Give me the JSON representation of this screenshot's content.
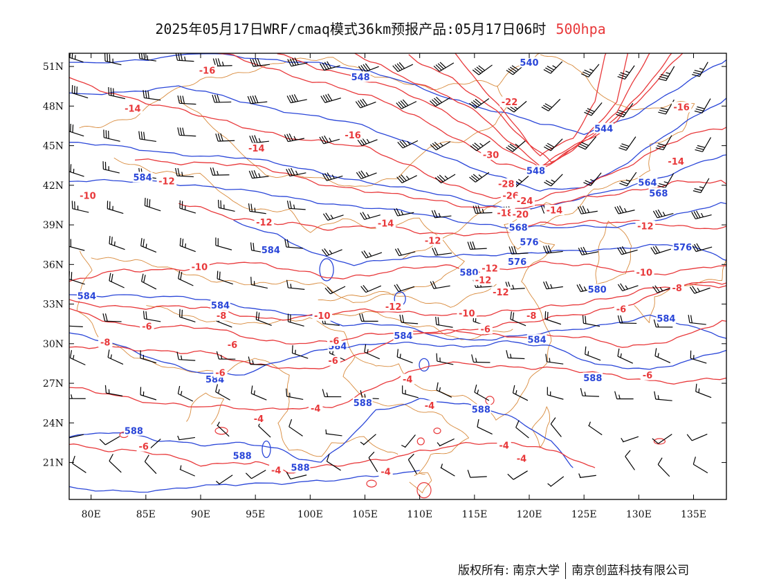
{
  "title": {
    "main": "2025年05月17日WRF/cmaq模式36km预报产品:05月17日06时",
    "level": "500hpa"
  },
  "axes": {
    "lat_ticks": [
      "51N",
      "48N",
      "45N",
      "42N",
      "39N",
      "36N",
      "33N",
      "30N",
      "27N",
      "24N",
      "21N"
    ],
    "lon_ticks": [
      "80E",
      "85E",
      "90E",
      "95E",
      "100E",
      "105E",
      "110E",
      "115E",
      "120E",
      "125E",
      "130E",
      "135E"
    ],
    "lat_range": [
      18.2,
      52
    ],
    "lon_range": [
      78,
      138
    ]
  },
  "colors": {
    "height_contours": "#2a46d8",
    "temperature_contours": "#e8383a",
    "boundaries": "#d8893a",
    "wind_barbs": "#000000"
  },
  "height_labels": [
    {
      "text": "540",
      "lon": 120,
      "lat": 51.3
    },
    {
      "text": "548",
      "lon": 104.6,
      "lat": 50.2
    },
    {
      "text": "544",
      "lon": 126.8,
      "lat": 46.3
    },
    {
      "text": "548",
      "lon": 120.6,
      "lat": 43.1
    },
    {
      "text": "564",
      "lon": 130.8,
      "lat": 42.2
    },
    {
      "text": "568",
      "lon": 131.8,
      "lat": 41.4
    },
    {
      "text": "584",
      "lon": 84.7,
      "lat": 42.6
    },
    {
      "text": "568",
      "lon": 119,
      "lat": 38.8
    },
    {
      "text": "576",
      "lon": 120,
      "lat": 37.7
    },
    {
      "text": "576",
      "lon": 134,
      "lat": 37.3
    },
    {
      "text": "576",
      "lon": 118.9,
      "lat": 36.2
    },
    {
      "text": "584",
      "lon": 96.4,
      "lat": 37.1
    },
    {
      "text": "580",
      "lon": 114.5,
      "lat": 35.4
    },
    {
      "text": "580",
      "lon": 126.2,
      "lat": 34.1
    },
    {
      "text": "584",
      "lon": 79.6,
      "lat": 33.6
    },
    {
      "text": "584",
      "lon": 91.8,
      "lat": 32.9
    },
    {
      "text": "584",
      "lon": 132.5,
      "lat": 31.9
    },
    {
      "text": "584",
      "lon": 108.5,
      "lat": 30.6
    },
    {
      "text": "584",
      "lon": 102.5,
      "lat": 29.8
    },
    {
      "text": "584",
      "lon": 120.7,
      "lat": 30.3
    },
    {
      "text": "588",
      "lon": 125.8,
      "lat": 27.4
    },
    {
      "text": "584",
      "lon": 91.3,
      "lat": 27.3
    },
    {
      "text": "588",
      "lon": 104.8,
      "lat": 25.5
    },
    {
      "text": "588",
      "lon": 115.6,
      "lat": 25.0
    },
    {
      "text": "588",
      "lon": 83.9,
      "lat": 23.4
    },
    {
      "text": "588",
      "lon": 93.8,
      "lat": 21.5
    },
    {
      "text": "588",
      "lon": 99.1,
      "lat": 20.6
    }
  ],
  "temperature_labels": [
    {
      "text": "-16",
      "lon": 90.6,
      "lat": 50.7
    },
    {
      "text": "-14",
      "lon": 83.8,
      "lat": 47.8
    },
    {
      "text": "-16",
      "lon": 103.9,
      "lat": 45.8
    },
    {
      "text": "-22",
      "lon": 118.2,
      "lat": 48.3
    },
    {
      "text": "-16",
      "lon": 133.9,
      "lat": 47.9
    },
    {
      "text": "-14",
      "lon": 95.1,
      "lat": 44.8
    },
    {
      "text": "-30",
      "lon": 116.5,
      "lat": 44.3
    },
    {
      "text": "-12",
      "lon": 86.9,
      "lat": 42.3
    },
    {
      "text": "-10",
      "lon": 79.7,
      "lat": 41.2
    },
    {
      "text": "-28",
      "lon": 117.9,
      "lat": 42.1
    },
    {
      "text": "-26",
      "lon": 118.3,
      "lat": 41.2
    },
    {
      "text": "-24",
      "lon": 119.6,
      "lat": 40.8
    },
    {
      "text": "-18",
      "lon": 117.8,
      "lat": 39.9
    },
    {
      "text": "-20",
      "lon": 119.2,
      "lat": 39.8
    },
    {
      "text": "-14",
      "lon": 122.3,
      "lat": 40.1
    },
    {
      "text": "-14",
      "lon": 133.4,
      "lat": 43.8
    },
    {
      "text": "-12",
      "lon": 130.6,
      "lat": 38.9
    },
    {
      "text": "-12",
      "lon": 95.8,
      "lat": 39.2
    },
    {
      "text": "-14",
      "lon": 106.9,
      "lat": 39.1
    },
    {
      "text": "-12",
      "lon": 111.2,
      "lat": 37.8
    },
    {
      "text": "-10",
      "lon": 89.9,
      "lat": 35.8
    },
    {
      "text": "-12",
      "lon": 116.4,
      "lat": 35.7
    },
    {
      "text": "-10",
      "lon": 130.5,
      "lat": 35.4
    },
    {
      "text": "-12",
      "lon": 115.8,
      "lat": 34.8
    },
    {
      "text": "-8",
      "lon": 133.5,
      "lat": 34.2
    },
    {
      "text": "-12",
      "lon": 117.4,
      "lat": 33.9
    },
    {
      "text": "-12",
      "lon": 107.6,
      "lat": 32.8
    },
    {
      "text": "-10",
      "lon": 114.3,
      "lat": 32.3
    },
    {
      "text": "-8",
      "lon": 120.2,
      "lat": 32.1
    },
    {
      "text": "-6",
      "lon": 128.4,
      "lat": 32.6
    },
    {
      "text": "-10",
      "lon": 101.1,
      "lat": 32.1
    },
    {
      "text": "-8",
      "lon": 91.9,
      "lat": 32.1
    },
    {
      "text": "-6",
      "lon": 85.1,
      "lat": 31.3
    },
    {
      "text": "-6",
      "lon": 116,
      "lat": 31.1
    },
    {
      "text": "-8",
      "lon": 81.3,
      "lat": 30.1
    },
    {
      "text": "-6",
      "lon": 102.2,
      "lat": 30.2
    },
    {
      "text": "-6",
      "lon": 92.9,
      "lat": 29.9
    },
    {
      "text": "-6",
      "lon": 102.1,
      "lat": 28.7
    },
    {
      "text": "-6",
      "lon": 130.8,
      "lat": 27.6
    },
    {
      "text": "-6",
      "lon": 91.8,
      "lat": 27.8
    },
    {
      "text": "-4",
      "lon": 108.9,
      "lat": 27.3
    },
    {
      "text": "-4",
      "lon": 100.5,
      "lat": 25.1
    },
    {
      "text": "-4",
      "lon": 110.9,
      "lat": 25.3
    },
    {
      "text": "-4",
      "lon": 95.3,
      "lat": 24.3
    },
    {
      "text": "-6",
      "lon": 84.8,
      "lat": 22.2
    },
    {
      "text": "-4",
      "lon": 117.7,
      "lat": 22.3
    },
    {
      "text": "-4",
      "lon": 119.3,
      "lat": 21.3
    },
    {
      "text": "-4",
      "lon": 96.9,
      "lat": 20.4
    },
    {
      "text": "-4",
      "lon": 106.9,
      "lat": 20.3
    }
  ],
  "copyright": {
    "left": "版权所有: 南京大学",
    "right": "南京创蓝科技有限公司"
  }
}
